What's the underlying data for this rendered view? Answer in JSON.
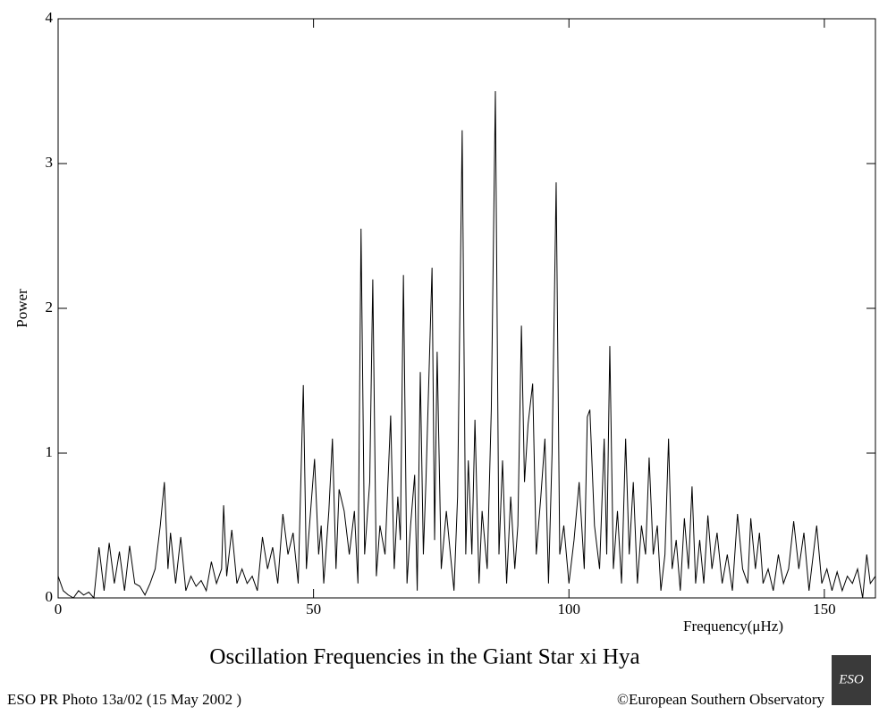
{
  "chart_data": {
    "type": "line",
    "title": "Oscillation Frequencies in the Giant Star xi Hya",
    "xlabel": "Frequency(μHz)",
    "ylabel": "Power",
    "footer_left": "ESO PR Photo 13a/02 (15 May 2002 )",
    "footer_right": "©European Southern Observatory",
    "logo_text": "ESO",
    "color": "#000000",
    "xlim": [
      0,
      160
    ],
    "ylim": [
      0,
      4
    ],
    "xticks": [
      0,
      50,
      100,
      150
    ],
    "yticks": [
      0,
      1,
      2,
      3,
      4
    ],
    "x": [
      0,
      1,
      2,
      3,
      4,
      5,
      6,
      7,
      8,
      9,
      10,
      11,
      12,
      13,
      14,
      15,
      16,
      17,
      18,
      19,
      20,
      20.8,
      21.5,
      22,
      23,
      24,
      25,
      26,
      27,
      28,
      29,
      30,
      31,
      32,
      32.4,
      33,
      34,
      35,
      36,
      37,
      38,
      39,
      40,
      41,
      42,
      43,
      44,
      45,
      46,
      47,
      48,
      48.6,
      49,
      50.2,
      51,
      51.5,
      52,
      53,
      53.7,
      54.4,
      55,
      56,
      57,
      58,
      58.7,
      59.3,
      60,
      61,
      61.6,
      62.3,
      63,
      64,
      65.1,
      65.8,
      66.5,
      67,
      67.6,
      68.3,
      69,
      69.8,
      70.3,
      70.9,
      71.5,
      72,
      73.2,
      73.7,
      74.2,
      75,
      76,
      76.8,
      77.5,
      78.2,
      79.1,
      79.8,
      80.3,
      81,
      81.6,
      82.4,
      83,
      84,
      84.8,
      85.6,
      86.3,
      87,
      87.8,
      88.6,
      89.4,
      90,
      90.7,
      91.3,
      92,
      92.9,
      93.6,
      94.5,
      95.3,
      96,
      96.7,
      97.5,
      98.2,
      99,
      100,
      101,
      102,
      103,
      103.6,
      104.1,
      105,
      106,
      106.9,
      107.4,
      108,
      108.7,
      109.5,
      110.3,
      111.1,
      111.8,
      112.6,
      113.4,
      114.2,
      115,
      115.7,
      116.5,
      117.3,
      118,
      118.8,
      119.5,
      120.2,
      121,
      121.8,
      122.6,
      123.4,
      124.1,
      124.8,
      125.6,
      126.4,
      127.2,
      128,
      129,
      130,
      131,
      132,
      133,
      134,
      135,
      135.6,
      136.5,
      137.3,
      138,
      139,
      140,
      141,
      142,
      143,
      144,
      145,
      146,
      147,
      148.5,
      149.5,
      150.5,
      151.5,
      152.5,
      153.5,
      154.5,
      155.5,
      156.5,
      157.5,
      158.3,
      159,
      160
    ],
    "values": [
      0.15,
      0.05,
      0.02,
      0.0,
      0.05,
      0.02,
      0.04,
      0.0,
      0.35,
      0.05,
      0.38,
      0.1,
      0.32,
      0.05,
      0.36,
      0.1,
      0.08,
      0.02,
      0.1,
      0.2,
      0.5,
      0.8,
      0.2,
      0.45,
      0.1,
      0.42,
      0.05,
      0.15,
      0.08,
      0.12,
      0.05,
      0.25,
      0.1,
      0.2,
      0.64,
      0.15,
      0.47,
      0.1,
      0.2,
      0.1,
      0.15,
      0.05,
      0.42,
      0.2,
      0.35,
      0.1,
      0.58,
      0.3,
      0.45,
      0.1,
      1.47,
      0.2,
      0.4,
      0.96,
      0.3,
      0.5,
      0.1,
      0.6,
      1.1,
      0.2,
      0.75,
      0.6,
      0.3,
      0.6,
      0.1,
      2.55,
      0.3,
      0.8,
      2.2,
      0.15,
      0.5,
      0.3,
      1.26,
      0.2,
      0.7,
      0.4,
      2.23,
      0.1,
      0.5,
      0.85,
      0.05,
      1.56,
      0.3,
      0.8,
      2.28,
      0.4,
      1.7,
      0.2,
      0.6,
      0.3,
      0.05,
      0.7,
      3.23,
      0.3,
      0.95,
      0.3,
      1.23,
      0.1,
      0.6,
      0.2,
      1.3,
      3.5,
      0.3,
      0.95,
      0.1,
      0.7,
      0.2,
      0.5,
      1.88,
      0.8,
      1.2,
      1.48,
      0.3,
      0.7,
      1.1,
      0.1,
      1.0,
      2.87,
      0.3,
      0.5,
      0.1,
      0.4,
      0.8,
      0.2,
      1.25,
      1.3,
      0.5,
      0.2,
      1.1,
      0.3,
      1.74,
      0.2,
      0.6,
      0.1,
      1.1,
      0.3,
      0.8,
      0.1,
      0.5,
      0.3,
      0.97,
      0.3,
      0.5,
      0.05,
      0.3,
      1.1,
      0.2,
      0.4,
      0.05,
      0.55,
      0.2,
      0.77,
      0.1,
      0.4,
      0.1,
      0.57,
      0.2,
      0.45,
      0.1,
      0.3,
      0.05,
      0.58,
      0.2,
      0.1,
      0.55,
      0.2,
      0.45,
      0.1,
      0.2,
      0.05,
      0.3,
      0.1,
      0.2,
      0.53,
      0.2,
      0.45,
      0.05,
      0.5,
      0.1,
      0.2,
      0.05,
      0.18,
      0.05,
      0.15,
      0.1,
      0.2,
      0.0,
      0.3,
      0.1,
      0.15
    ]
  }
}
